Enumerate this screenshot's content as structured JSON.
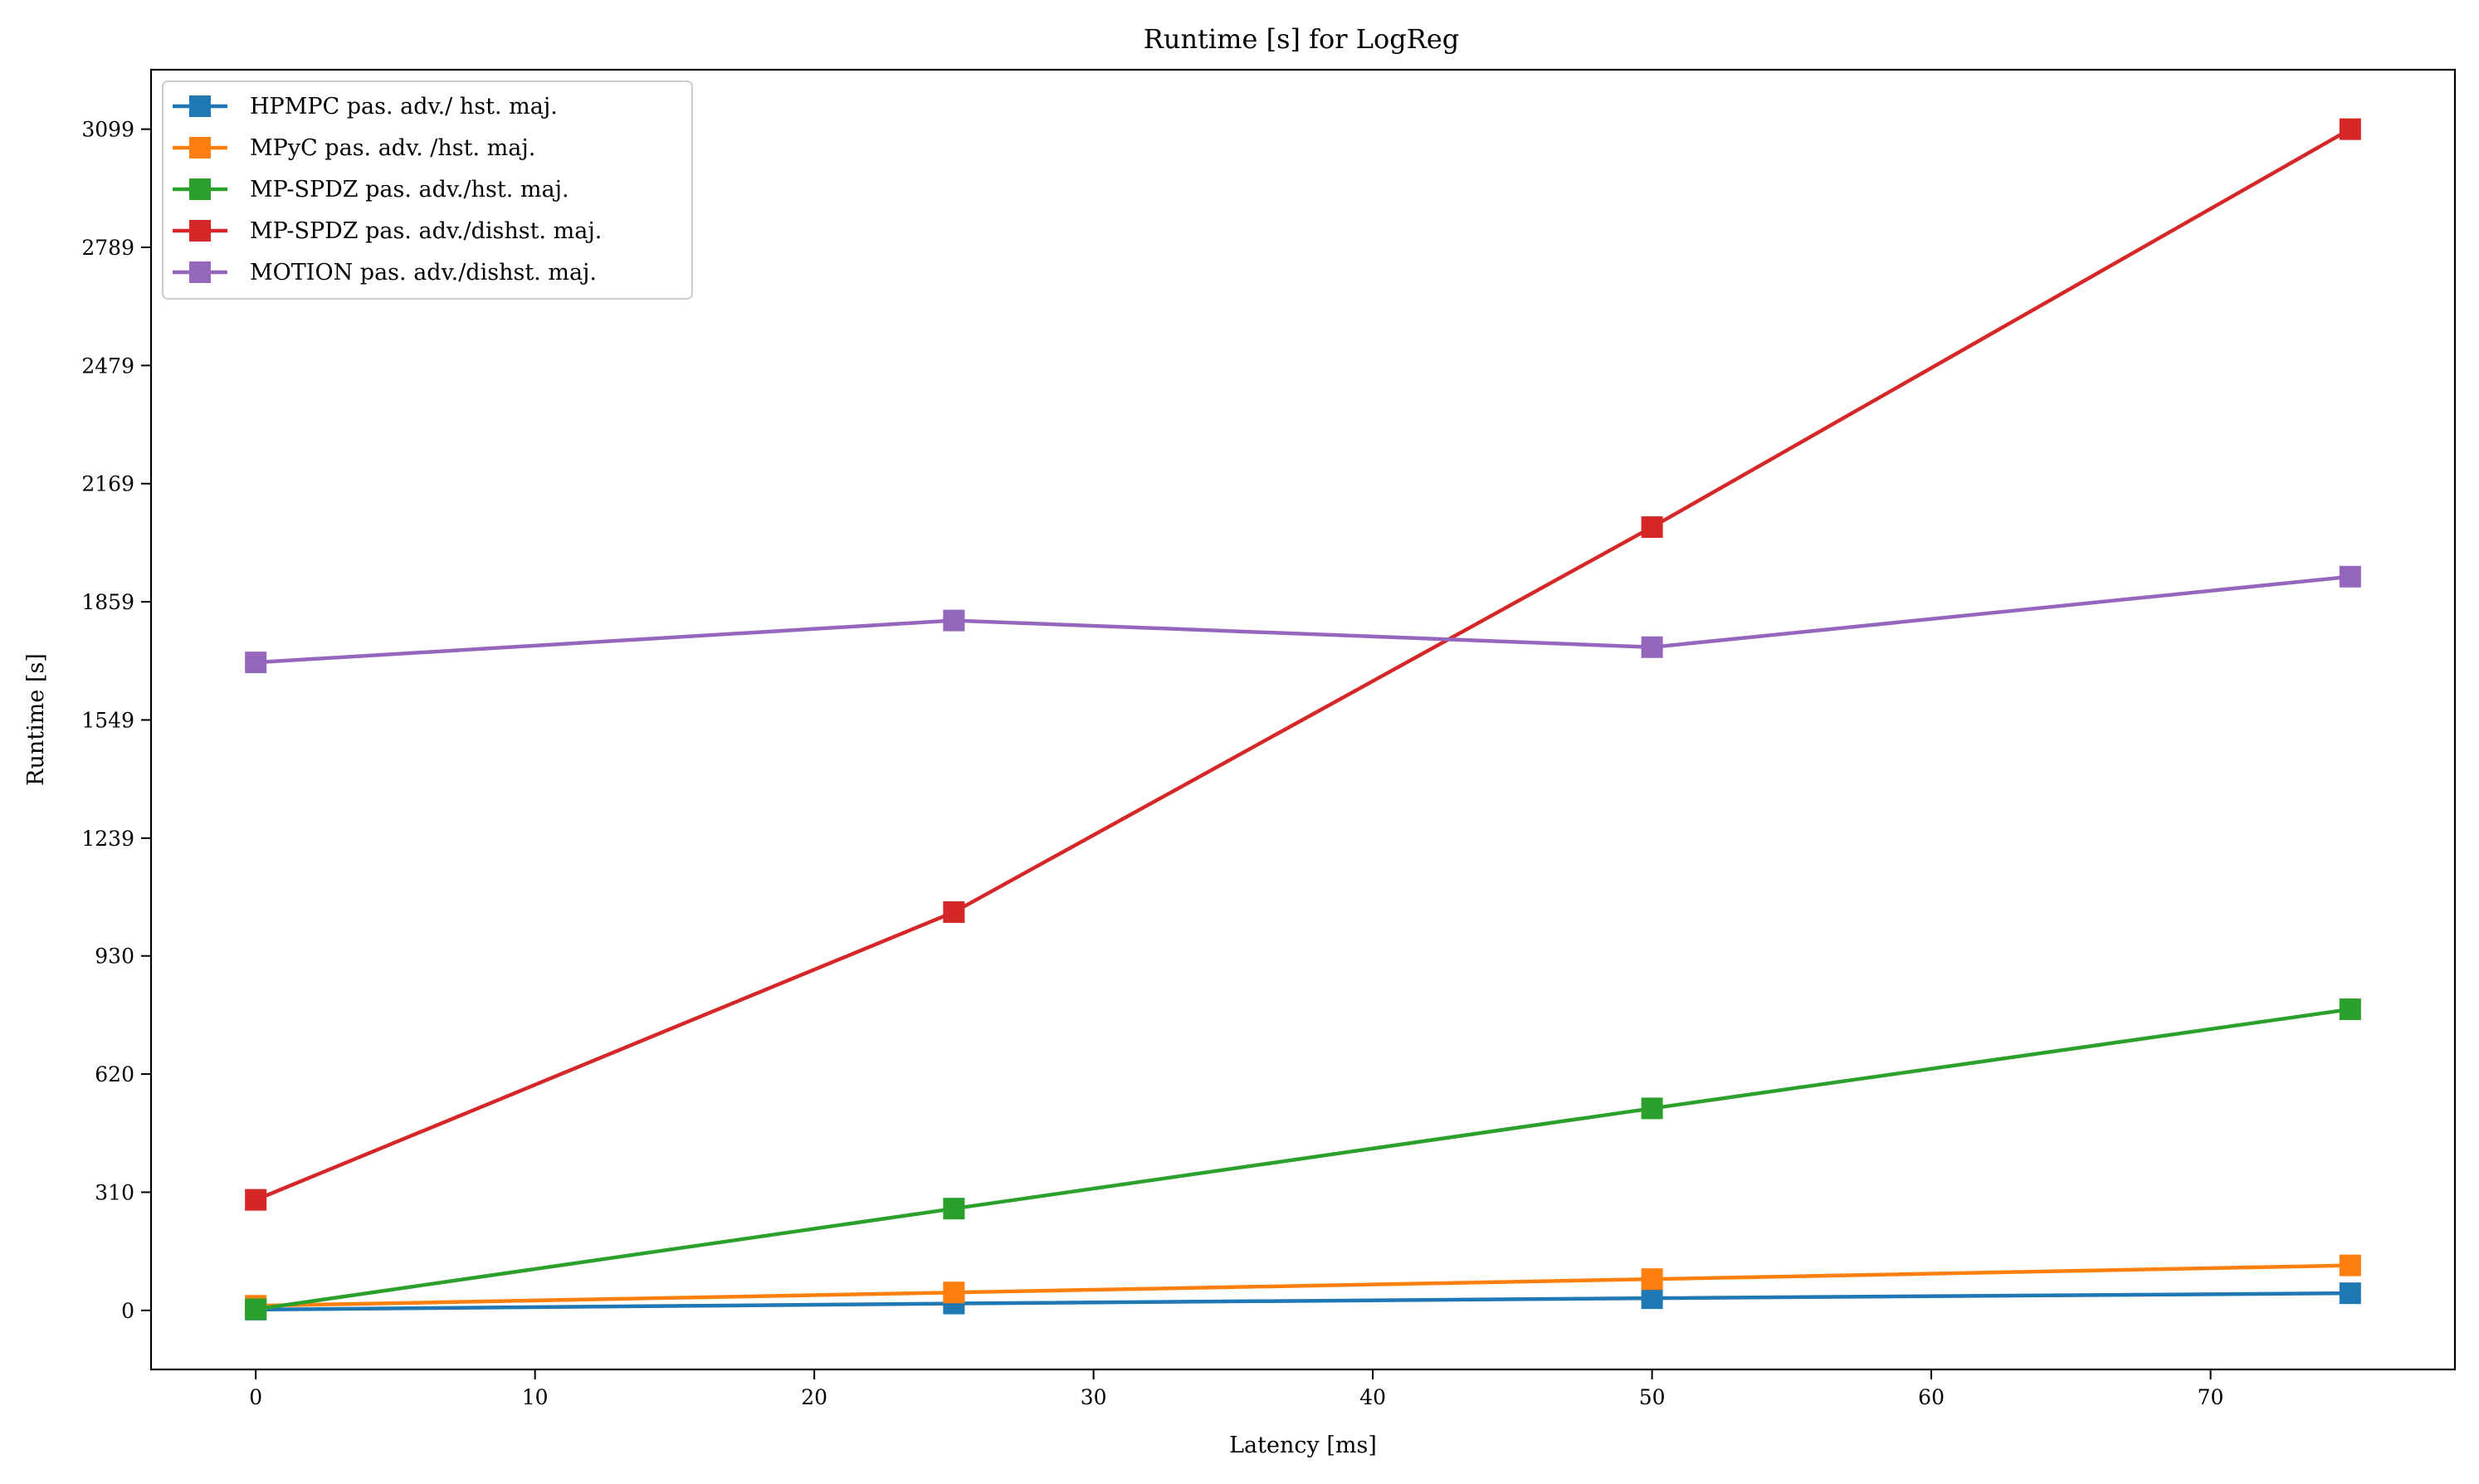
{
  "chart_data": {
    "type": "line",
    "title": "Runtime [s] for LogReg",
    "xlabel": "Latency [ms]",
    "ylabel": "Runtime [s]",
    "x": [
      0,
      25,
      50,
      75
    ],
    "xlim": [
      -3.75,
      78.75
    ],
    "ylim": [
      -155,
      3255
    ],
    "xticks": [
      0,
      10,
      20,
      30,
      40,
      50,
      60,
      70
    ],
    "yticks": [
      0,
      310,
      620,
      930,
      1239,
      1549,
      1859,
      2169,
      2479,
      2789,
      3099
    ],
    "grid": false,
    "legend_position": "top-left",
    "marker": "square",
    "series": [
      {
        "name": "HPMPC pas. adv./ hst. maj.",
        "color": "#1f77b4",
        "values": [
          2,
          18,
          32,
          45
        ]
      },
      {
        "name": "MPyC pas. adv. /hst. maj.",
        "color": "#ff7f0e",
        "values": [
          12,
          47,
          82,
          118
        ]
      },
      {
        "name": "MP-SPDZ pas. adv./hst. maj.",
        "color": "#2ca02c",
        "values": [
          3,
          267,
          530,
          790
        ]
      },
      {
        "name": "MP-SPDZ pas. adv./dishst. maj.",
        "color": "#d62728",
        "values": [
          290,
          1045,
          2055,
          3099
        ]
      },
      {
        "name": "MOTION pas. adv./dishst. maj.",
        "color": "#9467bd",
        "values": [
          1700,
          1810,
          1740,
          1925
        ]
      }
    ]
  }
}
